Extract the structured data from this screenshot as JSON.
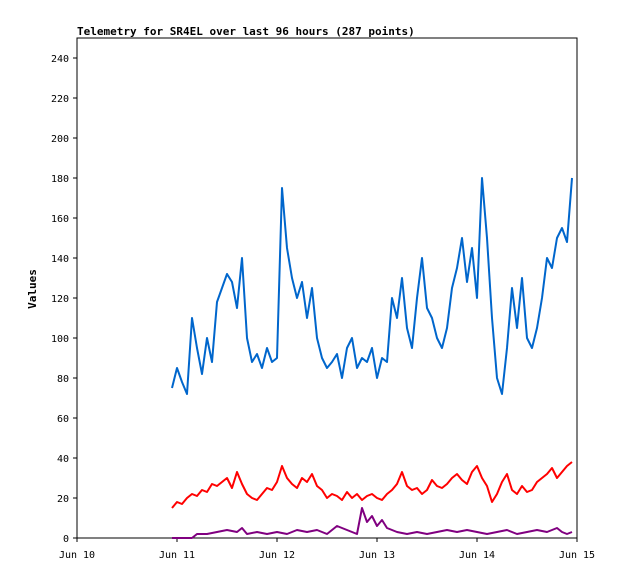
{
  "chart_data": {
    "type": "line",
    "title": "Telemetry for SR4EL over last 96 hours (287 points)",
    "xlabel": "",
    "ylabel": "Values",
    "ylim": [
      0,
      250
    ],
    "yticks": [
      0,
      20,
      40,
      60,
      80,
      100,
      120,
      140,
      160,
      180,
      200,
      220,
      240
    ],
    "xlim": [
      "2010-06-10",
      "2010-06-15"
    ],
    "xticks": [
      "Jun 10",
      "Jun 11",
      "Jun 12",
      "Jun 13",
      "Jun 14",
      "Jun 15"
    ],
    "grid": false,
    "x_unit": "days from Jun 10",
    "series": [
      {
        "color": "#0066cc",
        "x": [
          0.95,
          1.0,
          1.05,
          1.1,
          1.15,
          1.2,
          1.25,
          1.3,
          1.35,
          1.4,
          1.45,
          1.5,
          1.55,
          1.6,
          1.65,
          1.7,
          1.75,
          1.8,
          1.85,
          1.9,
          1.95,
          2.0,
          2.05,
          2.1,
          2.15,
          2.2,
          2.25,
          2.3,
          2.35,
          2.4,
          2.45,
          2.5,
          2.55,
          2.6,
          2.65,
          2.7,
          2.75,
          2.8,
          2.85,
          2.9,
          2.95,
          3.0,
          3.05,
          3.1,
          3.15,
          3.2,
          3.25,
          3.3,
          3.35,
          3.4,
          3.45,
          3.5,
          3.55,
          3.6,
          3.65,
          3.7,
          3.75,
          3.8,
          3.85,
          3.9,
          3.95,
          4.0,
          4.05,
          4.1,
          4.15,
          4.2,
          4.25,
          4.3,
          4.35,
          4.4,
          4.45,
          4.5,
          4.55,
          4.6,
          4.65,
          4.7,
          4.75,
          4.8,
          4.85,
          4.9,
          4.95
        ],
        "values": [
          75,
          85,
          78,
          72,
          110,
          95,
          82,
          100,
          88,
          118,
          125,
          132,
          128,
          115,
          140,
          100,
          88,
          92,
          85,
          95,
          88,
          90,
          175,
          145,
          130,
          120,
          128,
          110,
          125,
          100,
          90,
          85,
          88,
          92,
          80,
          95,
          100,
          85,
          90,
          88,
          95,
          80,
          90,
          88,
          120,
          110,
          130,
          105,
          95,
          120,
          140,
          115,
          110,
          100,
          95,
          105,
          125,
          135,
          150,
          128,
          145,
          120,
          180,
          150,
          110,
          80,
          72,
          95,
          125,
          105,
          130,
          100,
          95,
          105,
          120,
          140,
          135,
          150,
          155,
          148,
          180
        ]
      },
      {
        "color": "#ff0000",
        "x": [
          0.95,
          1.0,
          1.05,
          1.1,
          1.15,
          1.2,
          1.25,
          1.3,
          1.35,
          1.4,
          1.45,
          1.5,
          1.55,
          1.6,
          1.65,
          1.7,
          1.75,
          1.8,
          1.85,
          1.9,
          1.95,
          2.0,
          2.05,
          2.1,
          2.15,
          2.2,
          2.25,
          2.3,
          2.35,
          2.4,
          2.45,
          2.5,
          2.55,
          2.6,
          2.65,
          2.7,
          2.75,
          2.8,
          2.85,
          2.9,
          2.95,
          3.0,
          3.05,
          3.1,
          3.15,
          3.2,
          3.25,
          3.3,
          3.35,
          3.4,
          3.45,
          3.5,
          3.55,
          3.6,
          3.65,
          3.7,
          3.75,
          3.8,
          3.85,
          3.9,
          3.95,
          4.0,
          4.05,
          4.1,
          4.15,
          4.2,
          4.25,
          4.3,
          4.35,
          4.4,
          4.45,
          4.5,
          4.55,
          4.6,
          4.65,
          4.7,
          4.75,
          4.8,
          4.85,
          4.9,
          4.95
        ],
        "values": [
          15,
          18,
          17,
          20,
          22,
          21,
          24,
          23,
          27,
          26,
          28,
          30,
          25,
          33,
          27,
          22,
          20,
          19,
          22,
          25,
          24,
          28,
          36,
          30,
          27,
          25,
          30,
          28,
          32,
          26,
          24,
          20,
          22,
          21,
          19,
          23,
          20,
          22,
          19,
          21,
          22,
          20,
          19,
          22,
          24,
          27,
          33,
          26,
          24,
          25,
          22,
          24,
          29,
          26,
          25,
          27,
          30,
          32,
          29,
          27,
          33,
          36,
          30,
          26,
          18,
          22,
          28,
          32,
          24,
          22,
          26,
          23,
          24,
          28,
          30,
          32,
          35,
          30,
          33,
          36,
          38
        ]
      },
      {
        "color": "#800080",
        "x": [
          0.95,
          1.05,
          1.15,
          1.2,
          1.3,
          1.4,
          1.5,
          1.6,
          1.65,
          1.7,
          1.8,
          1.9,
          2.0,
          2.1,
          2.2,
          2.3,
          2.4,
          2.5,
          2.6,
          2.7,
          2.75,
          2.8,
          2.85,
          2.9,
          2.95,
          3.0,
          3.05,
          3.1,
          3.2,
          3.3,
          3.4,
          3.5,
          3.6,
          3.7,
          3.8,
          3.9,
          4.0,
          4.1,
          4.2,
          4.3,
          4.4,
          4.5,
          4.6,
          4.7,
          4.8,
          4.85,
          4.9,
          4.95
        ],
        "values": [
          0,
          0,
          0,
          2,
          2,
          3,
          4,
          3,
          5,
          2,
          3,
          2,
          3,
          2,
          4,
          3,
          4,
          2,
          6,
          4,
          3,
          2,
          15,
          8,
          11,
          6,
          9,
          5,
          3,
          2,
          3,
          2,
          3,
          4,
          3,
          4,
          3,
          2,
          3,
          4,
          2,
          3,
          4,
          3,
          5,
          3,
          2,
          3
        ]
      }
    ]
  }
}
